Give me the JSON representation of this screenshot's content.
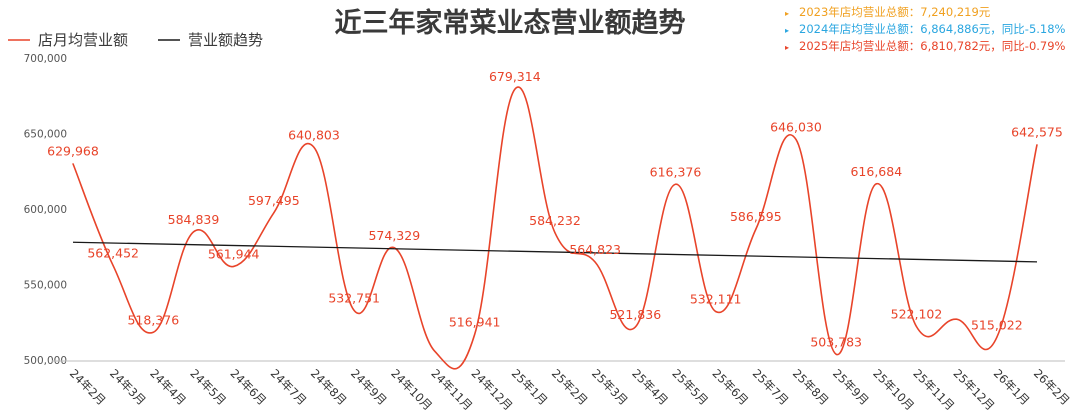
{
  "title": "近三年家常菜业态营业额趋势",
  "colors": {
    "series": "#e8442a",
    "trend": "#1a1a1a",
    "summary_2023": "#f0a020",
    "summary_2024": "#2aa6e0",
    "summary_2025": "#e8442a"
  },
  "summary": [
    {
      "text": "2023年店均营业总额：7,240,219元",
      "color": "#f0a020"
    },
    {
      "text": "2024年店均营业总额：6,864,886元，同比-5.18%",
      "color": "#2aa6e0"
    },
    {
      "text": "2025年店均营业总额：6,810,782元，同比-0.79%",
      "color": "#e8442a"
    }
  ],
  "chart_data": {
    "type": "line",
    "title": "近三年家常菜业态营业额趋势",
    "legend": [
      "店月均营业额",
      "营业额趋势"
    ],
    "legend_position": "top-left",
    "categories": [
      "24年2月",
      "24年3月",
      "24年4月",
      "24年5月",
      "24年6月",
      "24年7月",
      "24年8月",
      "24年9月",
      "24年10月",
      "24年11月",
      "24年12月",
      "25年1月",
      "25年2月",
      "25年3月",
      "25年4月",
      "25年5月",
      "25年6月",
      "25年7月",
      "25年8月",
      "25年9月",
      "25年10月",
      "25年11月",
      "25年12月",
      "26年1月",
      "26年2月"
    ],
    "series": [
      {
        "name": "店月均营业额",
        "values": [
          629968,
          562452,
          518376,
          584839,
          561944,
          597495,
          640803,
          532751,
          574329,
          506000,
          516941,
          679314,
          584232,
          564823,
          521836,
          616376,
          532111,
          586595,
          646030,
          503783,
          616684,
          522102,
          527000,
          515022,
          642575
        ]
      }
    ],
    "labels": [
      "629,968",
      "562,452",
      "518,376",
      "584,839",
      "561,944",
      "597,495",
      "640,803",
      "532,751",
      "574,329",
      "",
      "516,941",
      "679,314",
      "584,232",
      "564,823",
      "521,836",
      "616,376",
      "532,111",
      "586,595",
      "646,030",
      "503,783",
      "616,684",
      "522,102",
      "",
      "515,022",
      "642,575"
    ],
    "trend": {
      "name": "营业额趋势",
      "start": 578000,
      "end": 565000
    },
    "yticks": [
      "500,000",
      "550,000",
      "600,000",
      "650,000",
      "700,000"
    ],
    "ytick_values": [
      500000,
      550000,
      600000,
      650000,
      700000
    ],
    "ylim": [
      500000,
      700000
    ],
    "grid": false
  }
}
